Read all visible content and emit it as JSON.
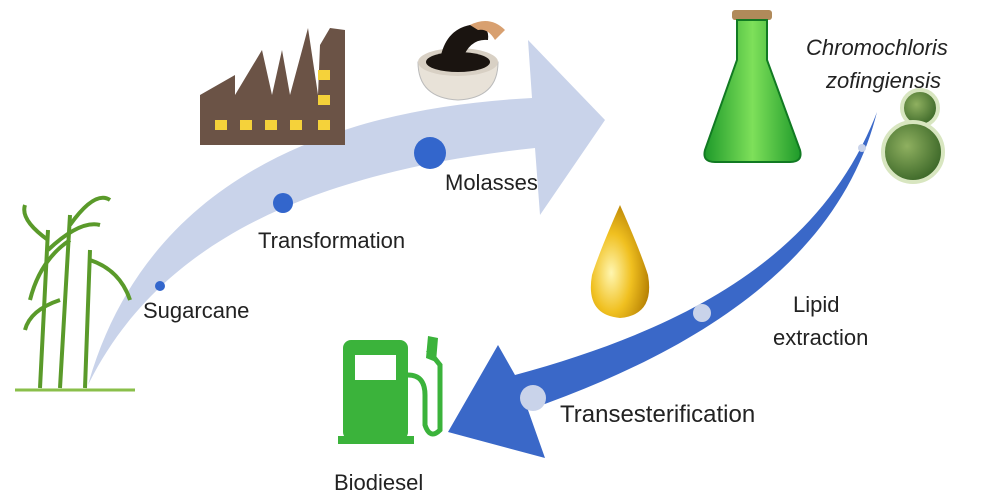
{
  "labels": {
    "sugarcane": "Sugarcane",
    "transformation": "Transformation",
    "molasses": "Molasses",
    "organism": [
      "Chromochloris",
      "zofingiensis"
    ],
    "lipid_extraction": [
      "Lipid",
      "extraction"
    ],
    "transesterification": "Transesterification",
    "biodiesel": "Biodiesel"
  }
}
